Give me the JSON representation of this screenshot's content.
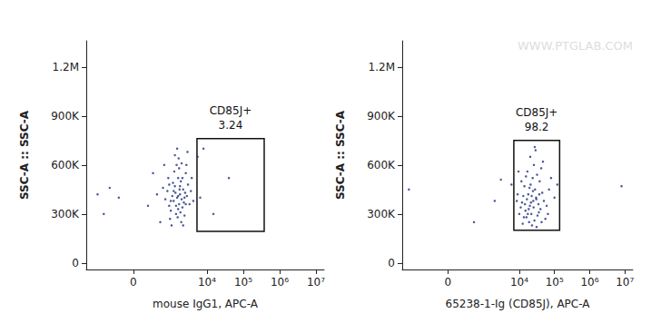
{
  "chart_data": [
    {
      "type": "scatter",
      "x_label": "mouse IgG1, APC-A",
      "y_label": "SSC-A :: SSC-A",
      "color": "#1f2f7a",
      "marker": "circle",
      "xlim": [
        -1860,
        16800000
      ],
      "ylim": [
        -40000,
        1360000
      ],
      "xticks": [
        0,
        {
          "value": 10000,
          "label": "10⁴"
        },
        {
          "value": 100000,
          "label": "10⁵"
        },
        {
          "value": 1000000,
          "label": "10⁶"
        },
        {
          "value": 10000000,
          "label": "10⁷"
        }
      ],
      "yticks": [
        0,
        {
          "value": 300000,
          "label": "300K"
        },
        {
          "value": 600000,
          "label": "600K"
        },
        {
          "value": 900000,
          "label": "900K"
        },
        {
          "value": 1200000,
          "label": "1.2M"
        }
      ],
      "gate": {
        "label": "CD85J+",
        "value": 3.24,
        "x": [
          5300,
          376000
        ],
        "y": [
          194000,
          761000
        ]
      },
      "x": [
        1500,
        1200,
        1800,
        900,
        2200,
        1600,
        1300,
        2000,
        1100,
        1700,
        2500,
        800,
        1400,
        1900,
        1000,
        2300,
        1600,
        700,
        2800,
        1250,
        1550,
        2100,
        600,
        3000,
        1350,
        1750,
        950,
        2600,
        1450,
        1850,
        400,
        3300,
        1150,
        2400,
        1650,
        200,
        2700,
        850,
        1950,
        3600,
        -200,
        1050,
        2900,
        -600,
        1500,
        500,
        4200,
        1300,
        2200,
        -900,
        300,
        3800,
        1700,
        650,
        2000,
        5500,
        6500,
        15000,
        40000,
        8000,
        -400,
        1800,
        1000,
        2400,
        1400,
        1200,
        1600,
        2600,
        900,
        2100
      ],
      "values": [
        400000,
        380000,
        420000,
        350000,
        450000,
        330000,
        470000,
        390000,
        410000,
        360000,
        430000,
        440000,
        300000,
        500000,
        320000,
        370000,
        520000,
        390000,
        410000,
        560000,
        280000,
        340000,
        460000,
        480000,
        430000,
        450000,
        270000,
        550000,
        600000,
        310000,
        420000,
        360000,
        490000,
        290000,
        640000,
        350000,
        600000,
        520000,
        250000,
        440000,
        400000,
        230000,
        680000,
        300000,
        700000,
        250000,
        380000,
        660000,
        230000,
        420000,
        550000,
        520000,
        580000,
        600000,
        610000,
        650000,
        400000,
        300000,
        520000,
        700000,
        460000,
        470000,
        380000,
        400000,
        350000,
        440000,
        410000,
        360000,
        480000,
        520000
      ]
    },
    {
      "type": "scatter",
      "x_label": "65238-1-Ig (CD85J), APC-A",
      "y_label": "SSC-A :: SSC-A",
      "watermark": "WWW.PTGLAB.COM",
      "color": "#1f2f7a",
      "marker": "circle",
      "xlim": [
        -1860,
        16800000
      ],
      "ylim": [
        -40000,
        1360000
      ],
      "xticks": [
        0,
        {
          "value": 10000,
          "label": "10⁴"
        },
        {
          "value": 100000,
          "label": "10⁵"
        },
        {
          "value": 1000000,
          "label": "10⁶"
        },
        {
          "value": 10000000,
          "label": "10⁷"
        }
      ],
      "yticks": [
        0,
        {
          "value": 300000,
          "label": "300K"
        },
        {
          "value": 600000,
          "label": "600K"
        },
        {
          "value": 900000,
          "label": "900K"
        },
        {
          "value": 1200000,
          "label": "1.2M"
        }
      ],
      "gate": {
        "label": "CD85J+",
        "value": 98.2,
        "x": [
          7000,
          140000
        ],
        "y": [
          200000,
          750000
        ]
      },
      "x": [
        20000,
        25000,
        15000,
        30000,
        18000,
        22000,
        35000,
        12000,
        28000,
        16000,
        40000,
        21000,
        13000,
        33000,
        24000,
        19000,
        45000,
        11000,
        27000,
        17000,
        50000,
        14000,
        38000,
        23000,
        10000,
        60000,
        26000,
        15500,
        31000,
        42000,
        9000,
        70000,
        20500,
        36000,
        12500,
        55000,
        29000,
        18500,
        80000,
        8500,
        47000,
        22500,
        100000,
        32000,
        16500,
        25500,
        19500,
        37000,
        14500,
        21500,
        65000,
        11500,
        43000,
        27500,
        120000,
        9500,
        24500,
        17500,
        30500,
        13500,
        -1200,
        3000,
        500,
        6000,
        2000,
        8000000
      ],
      "values": [
        350000,
        380000,
        320000,
        400000,
        420000,
        300000,
        360000,
        370000,
        450000,
        280000,
        330000,
        480000,
        410000,
        290000,
        520000,
        250000,
        430000,
        340000,
        260000,
        560000,
        380000,
        470000,
        500000,
        230000,
        300000,
        350000,
        600000,
        530000,
        220000,
        580000,
        420000,
        450000,
        650000,
        310000,
        240000,
        270000,
        690000,
        330000,
        520000,
        380000,
        620000,
        410000,
        400000,
        540000,
        390000,
        340000,
        460000,
        420000,
        360000,
        370000,
        300000,
        500000,
        250000,
        710000,
        480000,
        560000,
        440000,
        300000,
        390000,
        280000,
        450000,
        510000,
        250000,
        480000,
        380000,
        470000
      ]
    }
  ]
}
